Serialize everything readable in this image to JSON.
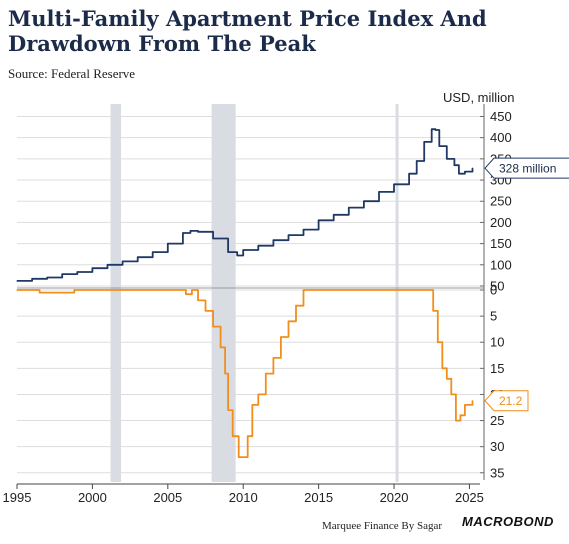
{
  "title": "Multi-Family Apartment Price Index And Drawdown From The Peak",
  "source": "Source: Federal Reserve",
  "footer": "Marquee Finance By Sagar",
  "brand": "MACROBOND",
  "colors": {
    "price": "#1f3864",
    "drawdown": "#f28e1c",
    "recession": "#d9dce3",
    "grid": "#dddddd"
  },
  "chart_data": [
    {
      "type": "line",
      "unit_label": "USD, million",
      "last_value_label": "328 million",
      "ylim": [
        50,
        470
      ],
      "yticks": [
        "50",
        "100",
        "150",
        "200",
        "250",
        "300",
        "350",
        "400",
        "450"
      ],
      "grid": true,
      "series": [
        {
          "x": [
            1995,
            1996,
            1997,
            1998,
            1999,
            2000,
            2001,
            2002,
            2003,
            2004,
            2005,
            2006,
            2006.5,
            2007,
            2008,
            2009,
            2009.6,
            2010,
            2011,
            2012,
            2013,
            2014,
            2015,
            2016,
            2017,
            2018,
            2019,
            2020,
            2021,
            2021.5,
            2022,
            2022.5,
            2022.75,
            2023,
            2023.5,
            2024,
            2024.3,
            2024.7,
            2025.2
          ],
          "y": [
            62,
            67,
            70,
            78,
            83,
            92,
            100,
            108,
            118,
            130,
            150,
            175,
            180,
            178,
            162,
            130,
            122,
            135,
            145,
            158,
            170,
            183,
            205,
            218,
            235,
            250,
            272,
            290,
            315,
            345,
            390,
            420,
            418,
            380,
            350,
            335,
            315,
            320,
            328
          ]
        }
      ]
    },
    {
      "type": "line",
      "last_value_label": "21.2",
      "ylim": [
        0,
        36
      ],
      "yticks": [
        "0",
        "5",
        "10",
        "15",
        "20",
        "25",
        "30",
        "35"
      ],
      "y_inverted": true,
      "grid": true,
      "series": [
        {
          "x": [
            1995,
            1996.3,
            1996.5,
            1998.8,
            1999.1,
            2006.1,
            2006.2,
            2006.6,
            2007,
            2007.5,
            2008,
            2008.5,
            2008.8,
            2009,
            2009.3,
            2009.7,
            2010,
            2010.3,
            2010.6,
            2011,
            2011.5,
            2012,
            2012.5,
            2013,
            2013.5,
            2014,
            2014.5,
            2022.3,
            2022.6,
            2022.9,
            2023.2,
            2023.5,
            2023.8,
            2024.1,
            2024.4,
            2024.7,
            2025.2
          ],
          "y": [
            0,
            0,
            0.5,
            0,
            0,
            0,
            0.8,
            0,
            2,
            4,
            7,
            11,
            16,
            23,
            28,
            32,
            32,
            28,
            22,
            20,
            16,
            13,
            9,
            6,
            3,
            0,
            0,
            0,
            4,
            10,
            15,
            17,
            20,
            25,
            24,
            22,
            21.2
          ]
        }
      ]
    }
  ],
  "x_axis": {
    "ticks": [
      "1995",
      "2000",
      "2005",
      "2010",
      "2015",
      "2020",
      "2025"
    ],
    "xlim": [
      1995,
      2025.7
    ]
  },
  "recessions": [
    [
      2001.2,
      2001.9
    ],
    [
      2007.9,
      2009.5
    ],
    [
      2020.1,
      2020.3
    ]
  ]
}
